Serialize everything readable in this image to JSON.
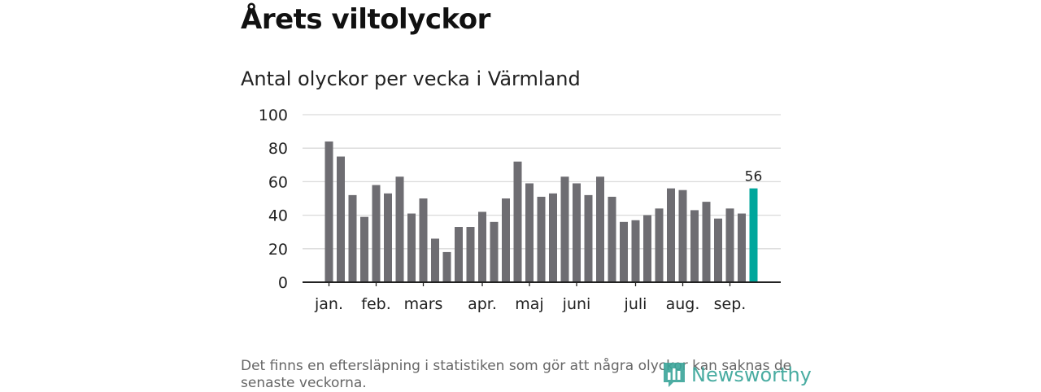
{
  "title": "Årets viltolyckor",
  "subtitle": "Antal olyckor per vecka i Värmland",
  "footnote": "Det finns en eftersläpning i statistiken som gör att några olyckor kan saknas de senaste veckorna.",
  "logo": {
    "text": "Newsworthy",
    "icon": "newsworthy-bar-chart-icon",
    "color": "#3aa59a"
  },
  "colors": {
    "bar": "#6e6d72",
    "highlight": "#00a69c",
    "grid": "#d9d9d9",
    "axis": "#222222"
  },
  "chart_data": {
    "type": "bar",
    "title": "Antal olyckor per vecka i Värmland",
    "xlabel": "",
    "ylabel": "",
    "ylim": [
      0,
      100
    ],
    "yticks": [
      0,
      20,
      40,
      60,
      80,
      100
    ],
    "grid": true,
    "weeks": [
      1,
      2,
      3,
      4,
      5,
      6,
      7,
      8,
      9,
      10,
      11,
      12,
      13,
      14,
      15,
      16,
      17,
      18,
      19,
      20,
      21,
      22,
      23,
      24,
      25,
      26,
      27,
      28,
      29,
      30,
      31,
      32,
      33,
      34,
      35,
      36,
      37
    ],
    "values": [
      84,
      75,
      52,
      39,
      58,
      53,
      63,
      41,
      50,
      26,
      18,
      33,
      33,
      42,
      36,
      50,
      72,
      59,
      51,
      53,
      63,
      59,
      52,
      63,
      51,
      36,
      37,
      40,
      44,
      56,
      55,
      43,
      48,
      38,
      44,
      41,
      56
    ],
    "highlight_index": 36,
    "highlight_label": "56",
    "month_labels": [
      {
        "label": "jan.",
        "week": 1
      },
      {
        "label": "feb.",
        "week": 5
      },
      {
        "label": "mars",
        "week": 9
      },
      {
        "label": "apr.",
        "week": 14
      },
      {
        "label": "maj",
        "week": 18
      },
      {
        "label": "juni",
        "week": 22
      },
      {
        "label": "juli",
        "week": 27
      },
      {
        "label": "aug.",
        "week": 31
      },
      {
        "label": "sep.",
        "week": 35
      }
    ]
  }
}
